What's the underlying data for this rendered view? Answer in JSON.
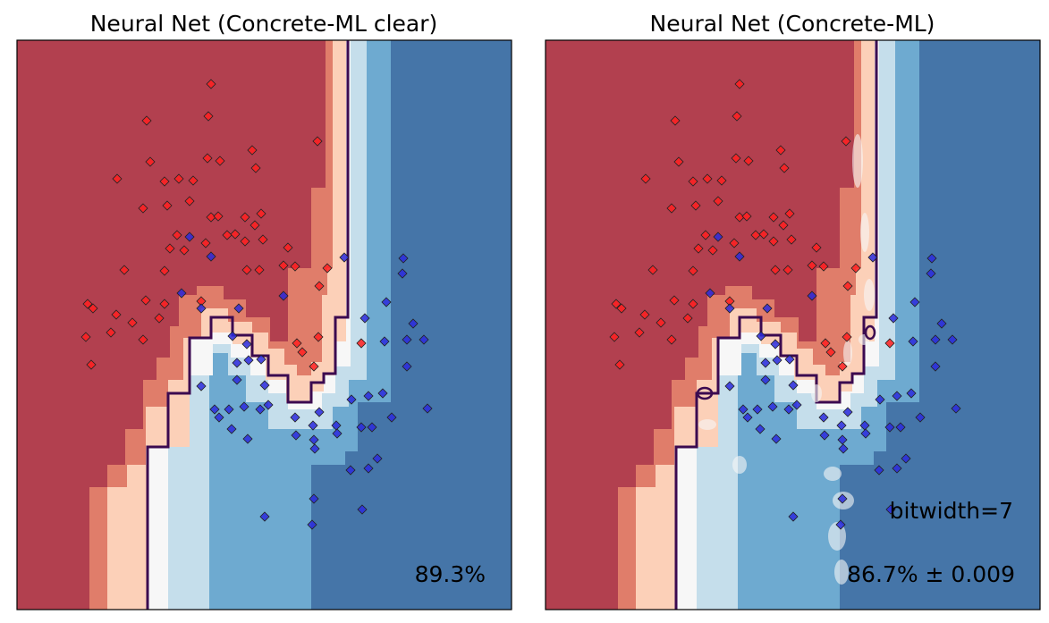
{
  "colors": {
    "red_dark": "#b2404f",
    "red_mid": "#e07d6a",
    "red_light": "#fcd0b8",
    "white": "#f7f7f7",
    "blue_light": "#c5deeb",
    "blue_mid": "#6eaad0",
    "blue_dark": "#4575a8",
    "boundary": "#3b0a50",
    "point_red": "#ff2020",
    "point_blue": "#2b2bdd"
  },
  "chart_data": [
    {
      "type": "scatter",
      "title": "Neural Net (Concrete-ML clear)",
      "annotations": [
        "89.3%"
      ],
      "grid": false,
      "xticks": false,
      "yticks": false,
      "background": "decision-surface (RdBu colormap) with purple decision boundary contour"
    },
    {
      "type": "scatter",
      "title": "Neural Net (Concrete-ML)",
      "annotations": [
        "bitwidth=7",
        "86.7% ± 0.009"
      ],
      "grid": false,
      "xticks": false,
      "yticks": false,
      "background": "decision-surface (RdBu colormap) with purple decision boundary contour"
    }
  ],
  "points": {
    "red": [
      [
        236,
        94
      ],
      [
        164,
        135
      ],
      [
        233,
        130
      ],
      [
        282,
        168
      ],
      [
        355,
        158
      ],
      [
        168,
        181
      ],
      [
        232,
        177
      ],
      [
        246,
        180
      ],
      [
        286,
        188
      ],
      [
        131,
        200
      ],
      [
        184,
        203
      ],
      [
        200,
        200
      ],
      [
        216,
        202
      ],
      [
        160,
        233
      ],
      [
        187,
        230
      ],
      [
        212,
        225
      ],
      [
        236,
        243
      ],
      [
        244,
        242
      ],
      [
        274,
        243
      ],
      [
        292,
        239
      ],
      [
        198,
        263
      ],
      [
        254,
        263
      ],
      [
        263,
        262
      ],
      [
        285,
        252
      ],
      [
        294,
        268
      ],
      [
        190,
        278
      ],
      [
        206,
        280
      ],
      [
        230,
        272
      ],
      [
        274,
        270
      ],
      [
        322,
        277
      ],
      [
        139,
        302
      ],
      [
        184,
        303
      ],
      [
        276,
        302
      ],
      [
        290,
        302
      ],
      [
        317,
        297
      ],
      [
        330,
        298
      ],
      [
        366,
        300
      ],
      [
        357,
        320
      ],
      [
        98,
        340
      ],
      [
        104,
        345
      ],
      [
        163,
        336
      ],
      [
        184,
        340
      ],
      [
        130,
        352
      ],
      [
        148,
        361
      ],
      [
        178,
        356
      ],
      [
        225,
        337
      ],
      [
        96,
        377
      ],
      [
        124,
        372
      ],
      [
        160,
        380
      ],
      [
        356,
        377
      ],
      [
        332,
        384
      ],
      [
        338,
        394
      ],
      [
        404,
        384
      ],
      [
        102,
        408
      ],
      [
        351,
        410
      ]
    ],
    "blue": [
      [
        212,
        265
      ],
      [
        236,
        287
      ],
      [
        451,
        289
      ],
      [
        450,
        306
      ],
      [
        385,
        288
      ],
      [
        203,
        328
      ],
      [
        317,
        331
      ],
      [
        432,
        338
      ],
      [
        225,
        345
      ],
      [
        267,
        345
      ],
      [
        408,
        356
      ],
      [
        462,
        362
      ],
      [
        455,
        380
      ],
      [
        260,
        376
      ],
      [
        276,
        385
      ],
      [
        430,
        382
      ],
      [
        278,
        403
      ],
      [
        265,
        406
      ],
      [
        292,
        402
      ],
      [
        474,
        380
      ],
      [
        455,
        410
      ],
      [
        225,
        432
      ],
      [
        265,
        425
      ],
      [
        296,
        431
      ],
      [
        428,
        440
      ],
      [
        412,
        443
      ],
      [
        393,
        447
      ],
      [
        240,
        458
      ],
      [
        256,
        458
      ],
      [
        273,
        455
      ],
      [
        291,
        458
      ],
      [
        300,
        453
      ],
      [
        357,
        461
      ],
      [
        478,
        457
      ],
      [
        245,
        467
      ],
      [
        330,
        467
      ],
      [
        350,
        476
      ],
      [
        376,
        476
      ],
      [
        438,
        467
      ],
      [
        404,
        478
      ],
      [
        416,
        478
      ],
      [
        259,
        480
      ],
      [
        277,
        491
      ],
      [
        331,
        487
      ],
      [
        351,
        492
      ],
      [
        377,
        485
      ],
      [
        422,
        513
      ],
      [
        412,
        524
      ],
      [
        392,
        526
      ],
      [
        352,
        502
      ],
      [
        351,
        558
      ],
      [
        405,
        570
      ],
      [
        296,
        578
      ],
      [
        349,
        587
      ]
    ]
  }
}
